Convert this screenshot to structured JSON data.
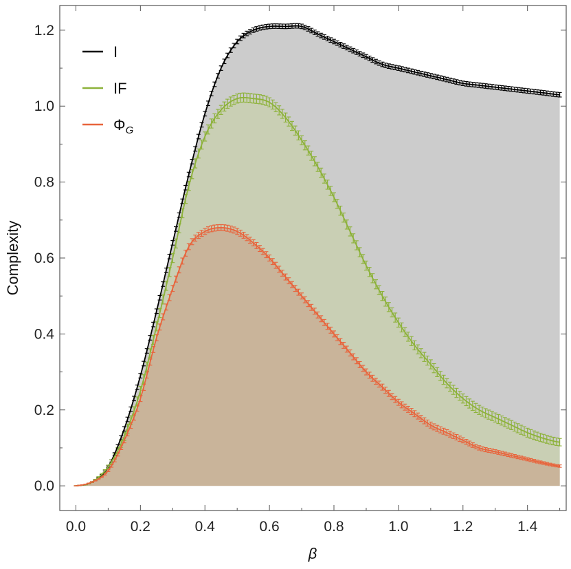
{
  "chart_data": {
    "type": "line",
    "xlabel": "β",
    "ylabel": "Complexity",
    "xlim": [
      -0.05,
      1.52
    ],
    "ylim": [
      -0.065,
      1.265
    ],
    "x_ticks": [
      "0.0",
      "0.2",
      "0.4",
      "0.6",
      "0.8",
      "1.0",
      "1.2",
      "1.4"
    ],
    "x_tick_values": [
      0.0,
      0.2,
      0.4,
      0.6,
      0.8,
      1.0,
      1.2,
      1.4
    ],
    "y_ticks": [
      "0.0",
      "0.2",
      "0.4",
      "0.6",
      "0.8",
      "1.0",
      "1.2"
    ],
    "y_tick_values": [
      0.0,
      0.2,
      0.4,
      0.6,
      0.8,
      1.0,
      1.2
    ],
    "legend_position": "top-left",
    "error_bars": true,
    "filled_to_zero": true,
    "x": [
      0.0,
      0.05,
      0.1,
      0.15,
      0.2,
      0.25,
      0.3,
      0.35,
      0.4,
      0.45,
      0.5,
      0.55,
      0.6,
      0.65,
      0.7,
      0.75,
      0.8,
      0.85,
      0.9,
      0.95,
      1.0,
      1.05,
      1.1,
      1.15,
      1.2,
      1.25,
      1.3,
      1.35,
      1.4,
      1.45,
      1.5
    ],
    "series": [
      {
        "name": "I",
        "color": "#000000",
        "fill": "#cccccc",
        "values": [
          0.0,
          0.01,
          0.05,
          0.15,
          0.29,
          0.46,
          0.64,
          0.82,
          0.98,
          1.1,
          1.17,
          1.2,
          1.21,
          1.21,
          1.21,
          1.19,
          1.17,
          1.15,
          1.13,
          1.11,
          1.1,
          1.09,
          1.08,
          1.07,
          1.06,
          1.055,
          1.05,
          1.045,
          1.04,
          1.035,
          1.03
        ],
        "error": 0.006
      },
      {
        "name": "IF",
        "color": "#8db23a",
        "fill": "#c9cfb4",
        "values": [
          0.0,
          0.01,
          0.05,
          0.13,
          0.25,
          0.42,
          0.6,
          0.79,
          0.92,
          0.99,
          1.02,
          1.02,
          1.01,
          0.97,
          0.91,
          0.84,
          0.76,
          0.67,
          0.58,
          0.5,
          0.43,
          0.37,
          0.32,
          0.27,
          0.23,
          0.2,
          0.18,
          0.16,
          0.14,
          0.125,
          0.115
        ],
        "error": 0.012
      },
      {
        "name": "ΦG",
        "color": "#e8643c",
        "fill": "#c9b49a",
        "values": [
          0.0,
          0.01,
          0.04,
          0.12,
          0.23,
          0.39,
          0.52,
          0.63,
          0.67,
          0.68,
          0.67,
          0.64,
          0.6,
          0.55,
          0.5,
          0.45,
          0.4,
          0.35,
          0.3,
          0.26,
          0.22,
          0.19,
          0.16,
          0.14,
          0.12,
          0.1,
          0.09,
          0.08,
          0.07,
          0.06,
          0.052
        ],
        "error": 0.008
      }
    ],
    "legend": [
      {
        "label": "I",
        "color": "#000000"
      },
      {
        "label": "IF",
        "color": "#8db23a"
      },
      {
        "label": "Φ",
        "sub": "G",
        "color": "#e8643c"
      }
    ]
  }
}
